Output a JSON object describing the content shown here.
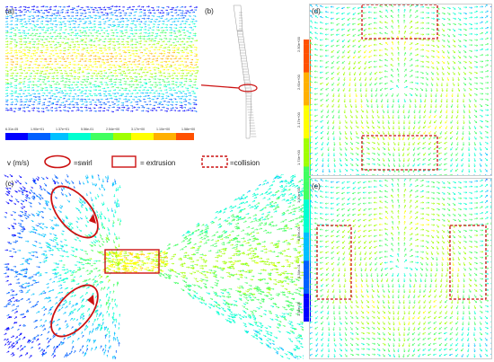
{
  "figure": {
    "panel_labels": [
      "(a)",
      "(b)",
      "(c)",
      "(d)",
      "(e)"
    ],
    "legend": {
      "velocity_label": "v (m/s)",
      "swirl": "=swirl",
      "extrusion": "= extrusion",
      "collision": "=collision"
    },
    "horizontal_colorbar_ticks": [
      "6.31e-05",
      "1.90e+01",
      "1.37e+01",
      "5.56e-01",
      "2.54e+00",
      "3.17e+00",
      "1.10e+00",
      "1.58e+00"
    ],
    "vertical_colorbar_ticks": [
      "2.50e+00",
      "2.61e+00",
      "2.17e+00",
      "1.74e+00",
      "1.30e+00",
      "8.69e-01",
      "4.34e-01",
      "1.58e-05"
    ],
    "colors": {
      "swirl_marker": "#cc1111",
      "extrusion_marker": "#cc1111",
      "collision_marker": "#cc1111",
      "colormap": [
        "#0000ff",
        "#0060ff",
        "#00c0ff",
        "#00ffd0",
        "#40ff60",
        "#a0ff00",
        "#ffff00",
        "#ffb000",
        "#ff5000",
        "#ff0000"
      ]
    }
  }
}
